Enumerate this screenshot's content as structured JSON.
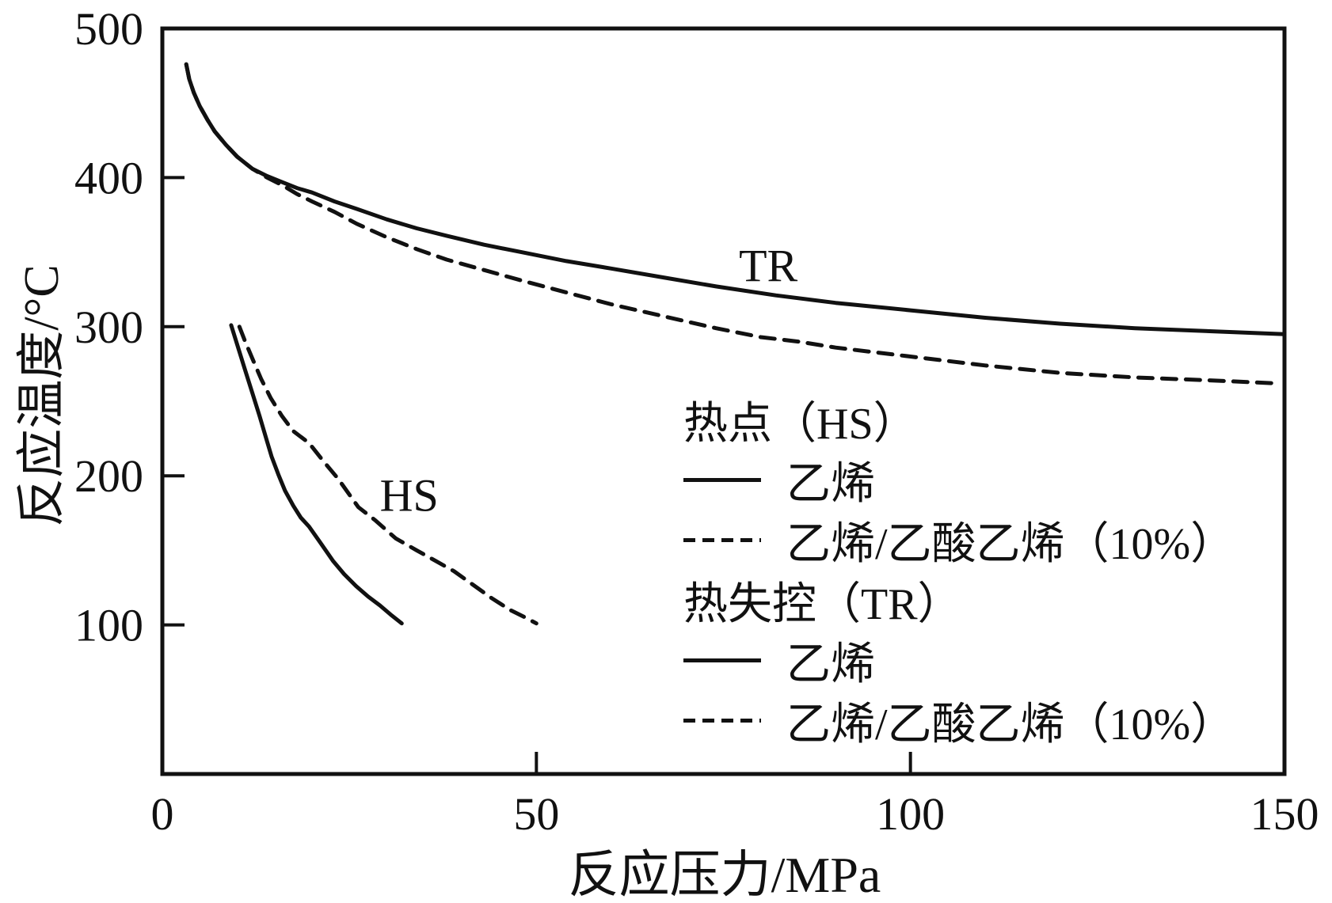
{
  "figure": {
    "background": "#ffffff",
    "ink_color": "#111111"
  },
  "axes": {
    "x_label": "反应压力/MPa",
    "y_label": "反应温度/°C"
  },
  "legend": {
    "groups": [
      {
        "header": "热点（HS）",
        "items": [
          {
            "style": "solid",
            "label": "乙烯"
          },
          {
            "style": "dashed",
            "label": "乙烯/乙酸乙烯（10%）"
          }
        ]
      },
      {
        "header": "热失控（TR）",
        "items": [
          {
            "style": "solid",
            "label": "乙烯"
          },
          {
            "style": "dashed",
            "label": "乙烯/乙酸乙烯（10%）"
          }
        ]
      }
    ]
  },
  "chart_data": {
    "type": "line",
    "title": "",
    "xlabel": "反应压力/MPa",
    "ylabel": "反应温度/°C",
    "xlim": [
      0,
      150
    ],
    "ylim": [
      0,
      500
    ],
    "x_ticks": [
      0,
      50,
      100,
      150
    ],
    "y_ticks": [
      100,
      200,
      300,
      400,
      500
    ],
    "grid": false,
    "legend_position": "inside-center-right",
    "annotations": [
      {
        "text": "TR",
        "x": 81,
        "y": 341
      },
      {
        "text": "HS",
        "x": 33,
        "y": 187
      }
    ],
    "series": [
      {
        "id": "tr-solid",
        "name": "热失控（TR）乙烯",
        "group": "热失控（TR）",
        "label": "乙烯",
        "style": "solid",
        "points": [
          [
            3.2,
            476
          ],
          [
            3.6,
            466
          ],
          [
            4.2,
            457
          ],
          [
            5,
            448
          ],
          [
            6,
            439
          ],
          [
            7,
            431
          ],
          [
            8.5,
            422
          ],
          [
            10,
            414
          ],
          [
            12,
            406
          ],
          [
            14,
            401
          ],
          [
            16,
            397
          ],
          [
            18,
            393
          ],
          [
            20,
            390
          ],
          [
            23,
            384
          ],
          [
            26,
            379
          ],
          [
            30,
            372
          ],
          [
            34,
            366
          ],
          [
            38,
            361
          ],
          [
            43,
            355
          ],
          [
            48,
            350
          ],
          [
            54,
            344
          ],
          [
            60,
            339
          ],
          [
            67,
            333
          ],
          [
            74,
            327
          ],
          [
            82,
            321
          ],
          [
            90,
            316
          ],
          [
            100,
            311
          ],
          [
            110,
            306
          ],
          [
            120,
            302
          ],
          [
            130,
            299
          ],
          [
            140,
            297
          ],
          [
            150,
            295
          ]
        ]
      },
      {
        "id": "tr-dashed",
        "name": "热失控（TR）乙烯/乙酸乙烯（10%）",
        "group": "热失控（TR）",
        "label": "乙烯/乙酸乙烯（10%）",
        "style": "dashed",
        "points": [
          [
            3.2,
            476
          ],
          [
            3.6,
            466
          ],
          [
            4.2,
            457
          ],
          [
            5,
            448
          ],
          [
            6,
            439
          ],
          [
            7,
            431
          ],
          [
            8.5,
            422
          ],
          [
            10,
            414
          ],
          [
            12,
            406
          ],
          [
            14,
            400
          ],
          [
            16,
            395
          ],
          [
            18,
            389
          ],
          [
            20,
            384
          ],
          [
            23,
            377
          ],
          [
            26,
            369
          ],
          [
            30,
            360
          ],
          [
            34,
            352
          ],
          [
            38,
            345
          ],
          [
            43,
            338
          ],
          [
            48,
            331
          ],
          [
            54,
            323
          ],
          [
            60,
            315
          ],
          [
            67,
            307
          ],
          [
            74,
            299
          ],
          [
            80,
            293
          ],
          [
            85,
            290
          ],
          [
            90,
            286
          ],
          [
            100,
            280
          ],
          [
            110,
            274
          ],
          [
            120,
            269
          ],
          [
            130,
            266
          ],
          [
            140,
            264
          ],
          [
            149,
            262
          ]
        ]
      },
      {
        "id": "hs-solid",
        "name": "热点（HS）乙烯",
        "group": "热点（HS）",
        "label": "乙烯",
        "style": "solid",
        "points": [
          [
            9.2,
            301
          ],
          [
            10,
            288
          ],
          [
            11,
            272
          ],
          [
            12,
            256
          ],
          [
            13,
            240
          ],
          [
            14,
            223
          ],
          [
            14.6,
            213
          ],
          [
            15.5,
            201
          ],
          [
            16.4,
            190
          ],
          [
            17.5,
            180
          ],
          [
            18.5,
            172
          ],
          [
            19.6,
            166
          ],
          [
            21,
            156
          ],
          [
            22.8,
            143
          ],
          [
            24.3,
            134
          ],
          [
            25.9,
            126
          ],
          [
            27.5,
            119
          ],
          [
            29.1,
            113
          ],
          [
            30.5,
            107
          ],
          [
            32,
            101
          ]
        ]
      },
      {
        "id": "hs-dashed",
        "name": "热点（HS）乙烯/乙酸乙烯（10%）",
        "group": "热点（HS）",
        "label": "乙烯/乙酸乙烯（10%）",
        "style": "dashed",
        "points": [
          [
            10.3,
            300
          ],
          [
            11,
            291
          ],
          [
            12,
            279
          ],
          [
            13.2,
            265
          ],
          [
            14.5,
            252
          ],
          [
            16,
            240
          ],
          [
            17.5,
            230
          ],
          [
            19.6,
            222
          ],
          [
            21.5,
            210
          ],
          [
            23.5,
            198
          ],
          [
            26.2,
            179
          ],
          [
            28.5,
            170
          ],
          [
            31.2,
            158
          ],
          [
            34,
            150
          ],
          [
            36.5,
            143
          ],
          [
            39,
            136
          ],
          [
            41.5,
            127
          ],
          [
            44,
            118
          ],
          [
            46.5,
            110
          ],
          [
            48.5,
            105
          ],
          [
            50,
            101
          ]
        ]
      }
    ]
  }
}
